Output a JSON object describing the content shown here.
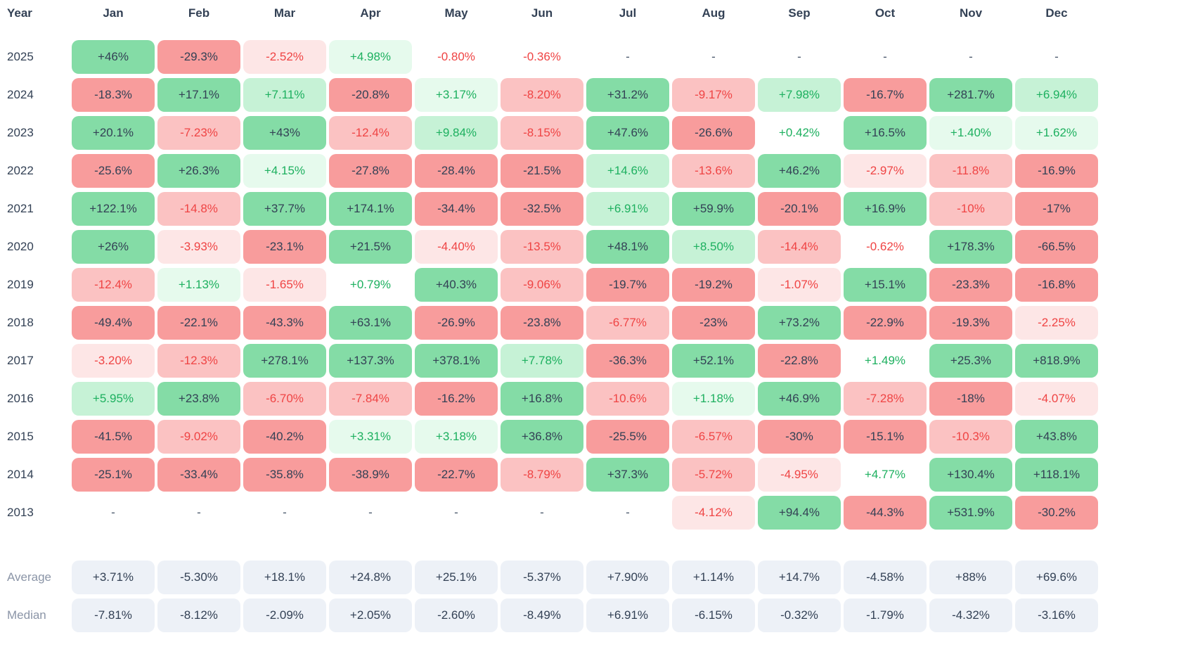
{
  "palette": {
    "green_strong_bg": "#84dca6",
    "green_medium_bg": "#c6f2d6",
    "green_light_bg": "#e6faed",
    "green_text": "#1db05f",
    "red_strong_bg": "#f89c9c",
    "red_medium_bg": "#fbc2c2",
    "red_light_bg": "#fde6e6",
    "red_text": "#ef4444",
    "dark_text": "#334155",
    "muted_label_text": "#8b95a7",
    "summary_bg": "#edf1f7"
  },
  "chart_data": {
    "type": "heatmap",
    "corner_label": "Year",
    "columns": [
      "Jan",
      "Feb",
      "Mar",
      "Apr",
      "May",
      "Jun",
      "Jul",
      "Aug",
      "Sep",
      "Oct",
      "Nov",
      "Dec"
    ],
    "rows": [
      {
        "label": "2025",
        "cells": [
          {
            "v": "+46%",
            "tone": "g3"
          },
          {
            "v": "-29.3%",
            "tone": "r3"
          },
          {
            "v": "-2.52%",
            "tone": "r1"
          },
          {
            "v": "+4.98%",
            "tone": "g1"
          },
          {
            "v": "-0.80%",
            "tone": "r0"
          },
          {
            "v": "-0.36%",
            "tone": "r0"
          },
          {
            "v": "-",
            "tone": "na"
          },
          {
            "v": "-",
            "tone": "na"
          },
          {
            "v": "-",
            "tone": "na"
          },
          {
            "v": "-",
            "tone": "na"
          },
          {
            "v": "-",
            "tone": "na"
          },
          {
            "v": "-",
            "tone": "na"
          }
        ]
      },
      {
        "label": "2024",
        "cells": [
          {
            "v": "-18.3%",
            "tone": "r3"
          },
          {
            "v": "+17.1%",
            "tone": "g3"
          },
          {
            "v": "+7.11%",
            "tone": "g2"
          },
          {
            "v": "-20.8%",
            "tone": "r3"
          },
          {
            "v": "+3.17%",
            "tone": "g1"
          },
          {
            "v": "-8.20%",
            "tone": "r2"
          },
          {
            "v": "+31.2%",
            "tone": "g3"
          },
          {
            "v": "-9.17%",
            "tone": "r2"
          },
          {
            "v": "+7.98%",
            "tone": "g2"
          },
          {
            "v": "-16.7%",
            "tone": "r3"
          },
          {
            "v": "+281.7%",
            "tone": "g3"
          },
          {
            "v": "+6.94%",
            "tone": "g2"
          }
        ]
      },
      {
        "label": "2023",
        "cells": [
          {
            "v": "+20.1%",
            "tone": "g3"
          },
          {
            "v": "-7.23%",
            "tone": "r2"
          },
          {
            "v": "+43%",
            "tone": "g3"
          },
          {
            "v": "-12.4%",
            "tone": "r2"
          },
          {
            "v": "+9.84%",
            "tone": "g2"
          },
          {
            "v": "-8.15%",
            "tone": "r2"
          },
          {
            "v": "+47.6%",
            "tone": "g3"
          },
          {
            "v": "-26.6%",
            "tone": "r3"
          },
          {
            "v": "+0.42%",
            "tone": "g0"
          },
          {
            "v": "+16.5%",
            "tone": "g3"
          },
          {
            "v": "+1.40%",
            "tone": "g1"
          },
          {
            "v": "+1.62%",
            "tone": "g1"
          }
        ]
      },
      {
        "label": "2022",
        "cells": [
          {
            "v": "-25.6%",
            "tone": "r3"
          },
          {
            "v": "+26.3%",
            "tone": "g3"
          },
          {
            "v": "+4.15%",
            "tone": "g1"
          },
          {
            "v": "-27.8%",
            "tone": "r3"
          },
          {
            "v": "-28.4%",
            "tone": "r3"
          },
          {
            "v": "-21.5%",
            "tone": "r3"
          },
          {
            "v": "+14.6%",
            "tone": "g2"
          },
          {
            "v": "-13.6%",
            "tone": "r2"
          },
          {
            "v": "+46.2%",
            "tone": "g3"
          },
          {
            "v": "-2.97%",
            "tone": "r1"
          },
          {
            "v": "-11.8%",
            "tone": "r2"
          },
          {
            "v": "-16.9%",
            "tone": "r3"
          }
        ]
      },
      {
        "label": "2021",
        "cells": [
          {
            "v": "+122.1%",
            "tone": "g3"
          },
          {
            "v": "-14.8%",
            "tone": "r2"
          },
          {
            "v": "+37.7%",
            "tone": "g3"
          },
          {
            "v": "+174.1%",
            "tone": "g3"
          },
          {
            "v": "-34.4%",
            "tone": "r3"
          },
          {
            "v": "-32.5%",
            "tone": "r3"
          },
          {
            "v": "+6.91%",
            "tone": "g2"
          },
          {
            "v": "+59.9%",
            "tone": "g3"
          },
          {
            "v": "-20.1%",
            "tone": "r3"
          },
          {
            "v": "+16.9%",
            "tone": "g3"
          },
          {
            "v": "-10%",
            "tone": "r2"
          },
          {
            "v": "-17%",
            "tone": "r3"
          }
        ]
      },
      {
        "label": "2020",
        "cells": [
          {
            "v": "+26%",
            "tone": "g3"
          },
          {
            "v": "-3.93%",
            "tone": "r1"
          },
          {
            "v": "-23.1%",
            "tone": "r3"
          },
          {
            "v": "+21.5%",
            "tone": "g3"
          },
          {
            "v": "-4.40%",
            "tone": "r1"
          },
          {
            "v": "-13.5%",
            "tone": "r2"
          },
          {
            "v": "+48.1%",
            "tone": "g3"
          },
          {
            "v": "+8.50%",
            "tone": "g2"
          },
          {
            "v": "-14.4%",
            "tone": "r2"
          },
          {
            "v": "-0.62%",
            "tone": "r0"
          },
          {
            "v": "+178.3%",
            "tone": "g3"
          },
          {
            "v": "-66.5%",
            "tone": "r3"
          }
        ]
      },
      {
        "label": "2019",
        "cells": [
          {
            "v": "-12.4%",
            "tone": "r2"
          },
          {
            "v": "+1.13%",
            "tone": "g1"
          },
          {
            "v": "-1.65%",
            "tone": "r1"
          },
          {
            "v": "+0.79%",
            "tone": "g0"
          },
          {
            "v": "+40.3%",
            "tone": "g3"
          },
          {
            "v": "-9.06%",
            "tone": "r2"
          },
          {
            "v": "-19.7%",
            "tone": "r3"
          },
          {
            "v": "-19.2%",
            "tone": "r3"
          },
          {
            "v": "-1.07%",
            "tone": "r1"
          },
          {
            "v": "+15.1%",
            "tone": "g3"
          },
          {
            "v": "-23.3%",
            "tone": "r3"
          },
          {
            "v": "-16.8%",
            "tone": "r3"
          }
        ]
      },
      {
        "label": "2018",
        "cells": [
          {
            "v": "-49.4%",
            "tone": "r3"
          },
          {
            "v": "-22.1%",
            "tone": "r3"
          },
          {
            "v": "-43.3%",
            "tone": "r3"
          },
          {
            "v": "+63.1%",
            "tone": "g3"
          },
          {
            "v": "-26.9%",
            "tone": "r3"
          },
          {
            "v": "-23.8%",
            "tone": "r3"
          },
          {
            "v": "-6.77%",
            "tone": "r2"
          },
          {
            "v": "-23%",
            "tone": "r3"
          },
          {
            "v": "+73.2%",
            "tone": "g3"
          },
          {
            "v": "-22.9%",
            "tone": "r3"
          },
          {
            "v": "-19.3%",
            "tone": "r3"
          },
          {
            "v": "-2.25%",
            "tone": "r1"
          }
        ]
      },
      {
        "label": "2017",
        "cells": [
          {
            "v": "-3.20%",
            "tone": "r1"
          },
          {
            "v": "-12.3%",
            "tone": "r2"
          },
          {
            "v": "+278.1%",
            "tone": "g3"
          },
          {
            "v": "+137.3%",
            "tone": "g3"
          },
          {
            "v": "+378.1%",
            "tone": "g3"
          },
          {
            "v": "+7.78%",
            "tone": "g2"
          },
          {
            "v": "-36.3%",
            "tone": "r3"
          },
          {
            "v": "+52.1%",
            "tone": "g3"
          },
          {
            "v": "-22.8%",
            "tone": "r3"
          },
          {
            "v": "+1.49%",
            "tone": "g0"
          },
          {
            "v": "+25.3%",
            "tone": "g3"
          },
          {
            "v": "+818.9%",
            "tone": "g3"
          }
        ]
      },
      {
        "label": "2016",
        "cells": [
          {
            "v": "+5.95%",
            "tone": "g2"
          },
          {
            "v": "+23.8%",
            "tone": "g3"
          },
          {
            "v": "-6.70%",
            "tone": "r2"
          },
          {
            "v": "-7.84%",
            "tone": "r2"
          },
          {
            "v": "-16.2%",
            "tone": "r3"
          },
          {
            "v": "+16.8%",
            "tone": "g3"
          },
          {
            "v": "-10.6%",
            "tone": "r2"
          },
          {
            "v": "+1.18%",
            "tone": "g1"
          },
          {
            "v": "+46.9%",
            "tone": "g3"
          },
          {
            "v": "-7.28%",
            "tone": "r2"
          },
          {
            "v": "-18%",
            "tone": "r3"
          },
          {
            "v": "-4.07%",
            "tone": "r1"
          }
        ]
      },
      {
        "label": "2015",
        "cells": [
          {
            "v": "-41.5%",
            "tone": "r3"
          },
          {
            "v": "-9.02%",
            "tone": "r2"
          },
          {
            "v": "-40.2%",
            "tone": "r3"
          },
          {
            "v": "+3.31%",
            "tone": "g1"
          },
          {
            "v": "+3.18%",
            "tone": "g1"
          },
          {
            "v": "+36.8%",
            "tone": "g3"
          },
          {
            "v": "-25.5%",
            "tone": "r3"
          },
          {
            "v": "-6.57%",
            "tone": "r2"
          },
          {
            "v": "-30%",
            "tone": "r3"
          },
          {
            "v": "-15.1%",
            "tone": "r3"
          },
          {
            "v": "-10.3%",
            "tone": "r2"
          },
          {
            "v": "+43.8%",
            "tone": "g3"
          }
        ]
      },
      {
        "label": "2014",
        "cells": [
          {
            "v": "-25.1%",
            "tone": "r3"
          },
          {
            "v": "-33.4%",
            "tone": "r3"
          },
          {
            "v": "-35.8%",
            "tone": "r3"
          },
          {
            "v": "-38.9%",
            "tone": "r3"
          },
          {
            "v": "-22.7%",
            "tone": "r3"
          },
          {
            "v": "-8.79%",
            "tone": "r2"
          },
          {
            "v": "+37.3%",
            "tone": "g3"
          },
          {
            "v": "-5.72%",
            "tone": "r2"
          },
          {
            "v": "-4.95%",
            "tone": "r1"
          },
          {
            "v": "+4.77%",
            "tone": "g0"
          },
          {
            "v": "+130.4%",
            "tone": "g3"
          },
          {
            "v": "+118.1%",
            "tone": "g3"
          }
        ]
      },
      {
        "label": "2013",
        "cells": [
          {
            "v": "-",
            "tone": "na"
          },
          {
            "v": "-",
            "tone": "na"
          },
          {
            "v": "-",
            "tone": "na"
          },
          {
            "v": "-",
            "tone": "na"
          },
          {
            "v": "-",
            "tone": "na"
          },
          {
            "v": "-",
            "tone": "na"
          },
          {
            "v": "-",
            "tone": "na"
          },
          {
            "v": "-4.12%",
            "tone": "r1"
          },
          {
            "v": "+94.4%",
            "tone": "g3"
          },
          {
            "v": "-44.3%",
            "tone": "r3"
          },
          {
            "v": "+531.9%",
            "tone": "g3"
          },
          {
            "v": "-30.2%",
            "tone": "r3"
          }
        ]
      }
    ],
    "summary_rows": [
      {
        "label": "Average",
        "values": [
          "+3.71%",
          "-5.30%",
          "+18.1%",
          "+24.8%",
          "+25.1%",
          "-5.37%",
          "+7.90%",
          "+1.14%",
          "+14.7%",
          "-4.58%",
          "+88%",
          "+69.6%"
        ]
      },
      {
        "label": "Median",
        "values": [
          "-7.81%",
          "-8.12%",
          "-2.09%",
          "+2.05%",
          "-2.60%",
          "-8.49%",
          "+6.91%",
          "-6.15%",
          "-0.32%",
          "-1.79%",
          "-4.32%",
          "-3.16%"
        ]
      }
    ]
  }
}
